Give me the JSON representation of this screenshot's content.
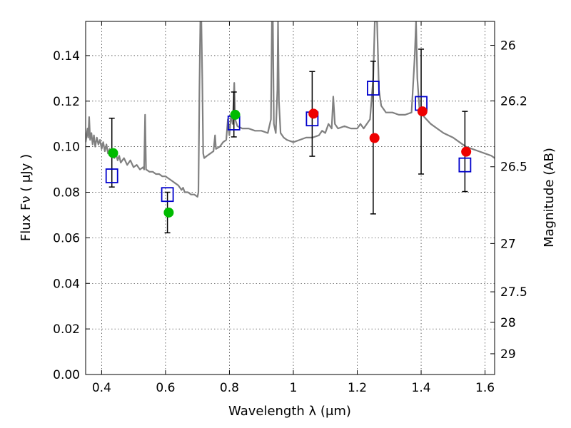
{
  "chart_data": {
    "type": "scatter",
    "xlabel": "Wavelength  λ (μm)",
    "ylabel": "Flux  Fν  ( μJy )",
    "y2label": "Magnitude (AB)",
    "xlim": [
      0.35,
      1.63
    ],
    "ylim": [
      0.0,
      0.155
    ],
    "x_ticks": [
      {
        "value": 0.4,
        "label": "0.4"
      },
      {
        "value": 0.6,
        "label": "0.6"
      },
      {
        "value": 0.8,
        "label": "0.8"
      },
      {
        "value": 1.0,
        "label": "1"
      },
      {
        "value": 1.2,
        "label": "1.2"
      },
      {
        "value": 1.4,
        "label": "1.4"
      },
      {
        "value": 1.6,
        "label": "1.6"
      }
    ],
    "y_ticks": [
      {
        "value": 0.0,
        "label": "0.00"
      },
      {
        "value": 0.02,
        "label": "0.02"
      },
      {
        "value": 0.04,
        "label": "0.04"
      },
      {
        "value": 0.06,
        "label": "0.06"
      },
      {
        "value": 0.08,
        "label": "0.08"
      },
      {
        "value": 0.1,
        "label": "0.10"
      },
      {
        "value": 0.12,
        "label": "0.12"
      },
      {
        "value": 0.14,
        "label": "0.14"
      }
    ],
    "mag_ticks": [
      {
        "flux": 0.1445,
        "label": "26"
      },
      {
        "flux": 0.1201,
        "label": "26.2"
      },
      {
        "flux": 0.0912,
        "label": "26.5"
      },
      {
        "flux": 0.0575,
        "label": "27"
      },
      {
        "flux": 0.0363,
        "label": "27.5"
      },
      {
        "flux": 0.0229,
        "label": "28"
      },
      {
        "flux": 0.0091,
        "label": "29"
      }
    ],
    "grid": true,
    "colors": {
      "sed": "#808080",
      "green": "#00bb00",
      "red": "#ee0000",
      "model": "#0000cc",
      "errorbar": "#000000"
    },
    "series": [
      {
        "kind": "line",
        "color": "#808080",
        "points": [
          [
            0.35,
            0.102
          ],
          [
            0.356,
            0.108
          ],
          [
            0.358,
            0.104
          ],
          [
            0.361,
            0.113
          ],
          [
            0.364,
            0.103
          ],
          [
            0.368,
            0.106
          ],
          [
            0.372,
            0.101
          ],
          [
            0.376,
            0.105
          ],
          [
            0.38,
            0.1
          ],
          [
            0.385,
            0.104
          ],
          [
            0.39,
            0.101
          ],
          [
            0.395,
            0.103
          ],
          [
            0.4,
            0.099
          ],
          [
            0.405,
            0.102
          ],
          [
            0.41,
            0.098
          ],
          [
            0.415,
            0.101
          ],
          [
            0.42,
            0.097
          ],
          [
            0.425,
            0.099
          ],
          [
            0.43,
            0.096
          ],
          [
            0.435,
            0.098
          ],
          [
            0.44,
            0.095
          ],
          [
            0.445,
            0.097
          ],
          [
            0.45,
            0.094
          ],
          [
            0.455,
            0.096
          ],
          [
            0.46,
            0.093
          ],
          [
            0.47,
            0.095
          ],
          [
            0.48,
            0.092
          ],
          [
            0.49,
            0.094
          ],
          [
            0.5,
            0.091
          ],
          [
            0.51,
            0.092
          ],
          [
            0.52,
            0.09
          ],
          [
            0.53,
            0.091
          ],
          [
            0.533,
            0.09
          ],
          [
            0.536,
            0.114
          ],
          [
            0.539,
            0.09
          ],
          [
            0.55,
            0.089
          ],
          [
            0.56,
            0.089
          ],
          [
            0.57,
            0.088
          ],
          [
            0.58,
            0.088
          ],
          [
            0.59,
            0.087
          ],
          [
            0.6,
            0.087
          ],
          [
            0.61,
            0.086
          ],
          [
            0.62,
            0.085
          ],
          [
            0.63,
            0.084
          ],
          [
            0.64,
            0.083
          ],
          [
            0.65,
            0.081
          ],
          [
            0.655,
            0.082
          ],
          [
            0.66,
            0.08
          ],
          [
            0.67,
            0.08
          ],
          [
            0.68,
            0.079
          ],
          [
            0.69,
            0.079
          ],
          [
            0.7,
            0.078
          ],
          [
            0.703,
            0.08
          ],
          [
            0.706,
            0.125
          ],
          [
            0.709,
            0.155
          ],
          [
            0.712,
            0.155
          ],
          [
            0.715,
            0.13
          ],
          [
            0.718,
            0.097
          ],
          [
            0.721,
            0.095
          ],
          [
            0.73,
            0.096
          ],
          [
            0.74,
            0.097
          ],
          [
            0.75,
            0.098
          ],
          [
            0.755,
            0.105
          ],
          [
            0.758,
            0.099
          ],
          [
            0.77,
            0.1
          ],
          [
            0.78,
            0.102
          ],
          [
            0.79,
            0.103
          ],
          [
            0.795,
            0.112
          ],
          [
            0.8,
            0.105
          ],
          [
            0.805,
            0.114
          ],
          [
            0.81,
            0.11
          ],
          [
            0.815,
            0.128
          ],
          [
            0.818,
            0.112
          ],
          [
            0.825,
            0.109
          ],
          [
            0.84,
            0.108
          ],
          [
            0.86,
            0.108
          ],
          [
            0.88,
            0.107
          ],
          [
            0.9,
            0.107
          ],
          [
            0.92,
            0.106
          ],
          [
            0.93,
            0.112
          ],
          [
            0.933,
            0.155
          ],
          [
            0.936,
            0.155
          ],
          [
            0.939,
            0.11
          ],
          [
            0.945,
            0.106
          ],
          [
            0.95,
            0.125
          ],
          [
            0.952,
            0.155
          ],
          [
            0.955,
            0.12
          ],
          [
            0.96,
            0.106
          ],
          [
            0.97,
            0.104
          ],
          [
            0.98,
            0.103
          ],
          [
            1.0,
            0.102
          ],
          [
            1.02,
            0.103
          ],
          [
            1.04,
            0.104
          ],
          [
            1.06,
            0.104
          ],
          [
            1.08,
            0.105
          ],
          [
            1.09,
            0.107
          ],
          [
            1.1,
            0.106
          ],
          [
            1.11,
            0.11
          ],
          [
            1.12,
            0.108
          ],
          [
            1.125,
            0.122
          ],
          [
            1.13,
            0.11
          ],
          [
            1.14,
            0.108
          ],
          [
            1.16,
            0.109
          ],
          [
            1.18,
            0.108
          ],
          [
            1.2,
            0.108
          ],
          [
            1.21,
            0.11
          ],
          [
            1.22,
            0.108
          ],
          [
            1.24,
            0.112
          ],
          [
            1.25,
            0.13
          ],
          [
            1.255,
            0.155
          ],
          [
            1.262,
            0.155
          ],
          [
            1.268,
            0.125
          ],
          [
            1.275,
            0.118
          ],
          [
            1.29,
            0.115
          ],
          [
            1.31,
            0.115
          ],
          [
            1.33,
            0.114
          ],
          [
            1.35,
            0.114
          ],
          [
            1.37,
            0.115
          ],
          [
            1.38,
            0.14
          ],
          [
            1.384,
            0.155
          ],
          [
            1.388,
            0.13
          ],
          [
            1.395,
            0.116
          ],
          [
            1.41,
            0.113
          ],
          [
            1.43,
            0.11
          ],
          [
            1.45,
            0.108
          ],
          [
            1.47,
            0.106
          ],
          [
            1.5,
            0.104
          ],
          [
            1.52,
            0.102
          ],
          [
            1.54,
            0.1
          ],
          [
            1.56,
            0.099
          ],
          [
            1.58,
            0.098
          ],
          [
            1.6,
            0.097
          ],
          [
            1.62,
            0.096
          ],
          [
            1.63,
            0.095
          ]
        ]
      },
      {
        "kind": "errorbars",
        "color": "#000000",
        "points": [
          {
            "x": 0.432,
            "low": 0.0823,
            "high": 0.1125
          },
          {
            "x": 0.606,
            "low": 0.0622,
            "high": 0.08
          },
          {
            "x": 0.814,
            "low": 0.1043,
            "high": 0.124
          },
          {
            "x": 1.059,
            "low": 0.0958,
            "high": 0.133
          },
          {
            "x": 1.25,
            "low": 0.0705,
            "high": 0.1375
          },
          {
            "x": 1.4,
            "low": 0.088,
            "high": 0.1428
          },
          {
            "x": 1.537,
            "low": 0.0803,
            "high": 0.1155
          }
        ]
      },
      {
        "kind": "squares",
        "color": "#0000cc",
        "points": [
          {
            "x": 0.432,
            "y": 0.0872
          },
          {
            "x": 0.606,
            "y": 0.079
          },
          {
            "x": 0.814,
            "y": 0.1104
          },
          {
            "x": 1.059,
            "y": 0.1122
          },
          {
            "x": 1.25,
            "y": 0.1257
          },
          {
            "x": 1.4,
            "y": 0.119
          },
          {
            "x": 1.537,
            "y": 0.092
          }
        ]
      },
      {
        "kind": "circles",
        "color": "#00bb00",
        "points": [
          {
            "x": 0.436,
            "y": 0.0972
          },
          {
            "x": 0.61,
            "y": 0.0711
          },
          {
            "x": 0.818,
            "y": 0.114
          }
        ]
      },
      {
        "kind": "circles",
        "color": "#ee0000",
        "points": [
          {
            "x": 1.063,
            "y": 0.1145
          },
          {
            "x": 1.254,
            "y": 0.1038
          },
          {
            "x": 1.404,
            "y": 0.1155
          },
          {
            "x": 1.541,
            "y": 0.0978
          }
        ]
      }
    ]
  }
}
